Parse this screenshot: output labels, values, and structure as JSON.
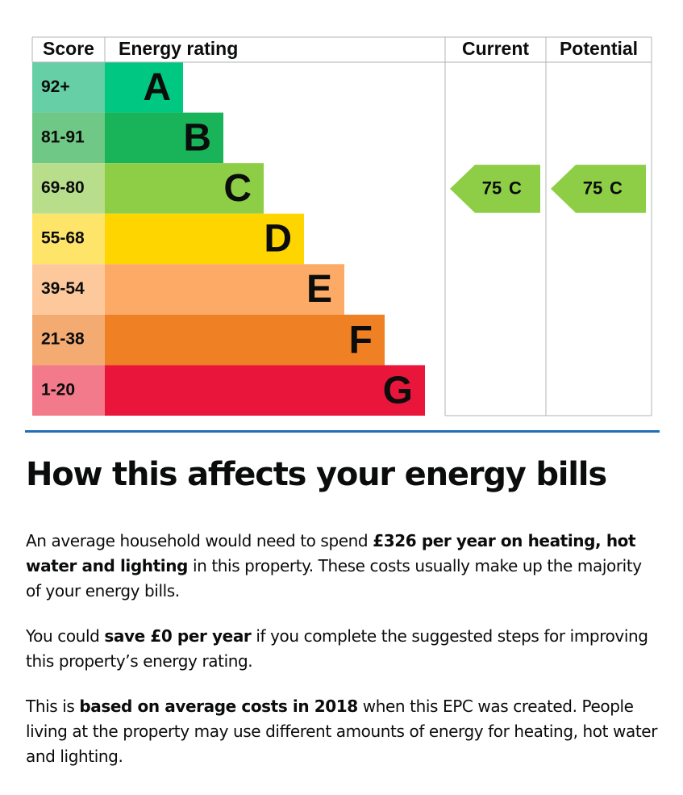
{
  "table": {
    "headers": [
      "Score",
      "Energy rating",
      "Current",
      "Potential"
    ],
    "bands": [
      {
        "score": "92+",
        "letter": "A",
        "color": "#00c781",
        "score_color": "#66cfa5"
      },
      {
        "score": "81-91",
        "letter": "B",
        "color": "#19b459",
        "score_color": "#70c886"
      },
      {
        "score": "69-80",
        "letter": "C",
        "color": "#8dce46",
        "score_color": "#b8dd8b"
      },
      {
        "score": "55-68",
        "letter": "D",
        "color": "#ffd500",
        "score_color": "#ffe46a"
      },
      {
        "score": "39-54",
        "letter": "E",
        "color": "#fcaa65",
        "score_color": "#fdc99c"
      },
      {
        "score": "21-38",
        "letter": "F",
        "color": "#ef8023",
        "score_color": "#f4ab72"
      },
      {
        "score": "1-20",
        "letter": "G",
        "color": "#e9153b",
        "score_color": "#f27a8b"
      }
    ],
    "current": {
      "score": "75",
      "rating": "C"
    },
    "potential": {
      "score": "75",
      "rating": "C"
    }
  },
  "section": {
    "title": "How this affects your energy bills",
    "paragraphs": [
      [
        {
          "text": "An average household would need to spend ",
          "bold": false
        },
        {
          "text": "£326 per year on heating, hot water and lighting",
          "bold": true
        },
        {
          "text": " in this property. These costs usually make up the majority of your energy bills.",
          "bold": false
        }
      ],
      [
        {
          "text": "You could ",
          "bold": false
        },
        {
          "text": "save £0 per year",
          "bold": true
        },
        {
          "text": " if you complete the suggested steps for improving this property’s energy rating.",
          "bold": false
        }
      ],
      [
        {
          "text": "This is ",
          "bold": false
        },
        {
          "text": "based on average costs in 2018",
          "bold": true
        },
        {
          "text": " when this EPC was created. People living at the property may use different amounts of energy for heating, hot water and lighting.",
          "bold": false
        }
      ]
    ]
  }
}
